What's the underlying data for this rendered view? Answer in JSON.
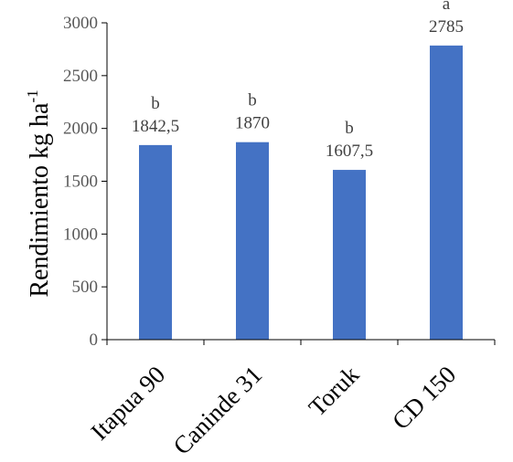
{
  "chart_data": {
    "type": "bar",
    "categories": [
      "Itapua 90",
      "Caninde 31",
      "Toruk",
      "CD 150"
    ],
    "values": [
      1842.5,
      1870,
      1607.5,
      2785
    ],
    "value_labels": [
      "1842,5",
      "1870",
      "1607,5",
      "2785"
    ],
    "letters": [
      "b",
      "b",
      "b",
      "a"
    ],
    "ylabel": "Rendimiento kg ha",
    "ylabel_superscript": "-1",
    "ylim": [
      0,
      3000
    ],
    "yticks": [
      0,
      500,
      1000,
      1500,
      2000,
      2500,
      3000
    ],
    "ytick_labels": [
      "0",
      "500",
      "1000",
      "1500",
      "2000",
      "2500",
      "3000"
    ],
    "grid": false,
    "bar_color": "#4472C4"
  }
}
